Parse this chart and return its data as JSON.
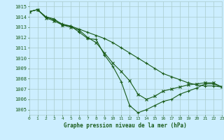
{
  "title": "Graphe pression niveau de la mer (hPa)",
  "bg_color": "#cceeff",
  "grid_color": "#aacccc",
  "line_color": "#1a5c1a",
  "xlim": [
    0,
    23
  ],
  "ylim": [
    1004.5,
    1015.5
  ],
  "yticks": [
    1005,
    1006,
    1007,
    1008,
    1009,
    1010,
    1011,
    1012,
    1013,
    1014,
    1015
  ],
  "xticks": [
    0,
    1,
    2,
    3,
    4,
    5,
    6,
    7,
    8,
    9,
    10,
    11,
    12,
    13,
    14,
    15,
    16,
    17,
    18,
    19,
    20,
    21,
    22,
    23
  ],
  "series": [
    {
      "x": [
        0,
        1,
        2,
        3,
        4,
        5,
        6,
        7,
        8,
        9,
        10,
        11,
        12,
        13,
        14,
        15,
        16,
        17,
        18,
        19,
        20,
        21,
        22,
        23
      ],
      "y": [
        1014.5,
        1014.7,
        1014.0,
        1013.8,
        1013.2,
        1013.1,
        1012.5,
        1011.9,
        1011.8,
        1010.3,
        1009.2,
        1007.7,
        1005.4,
        1004.7,
        1005.0,
        1005.4,
        1005.8,
        1006.0,
        1006.5,
        1006.8,
        1007.1,
        1007.5,
        1007.5,
        1007.2
      ]
    },
    {
      "x": [
        0,
        1,
        2,
        3,
        4,
        5,
        6,
        7,
        8,
        9,
        10,
        11,
        12,
        13,
        14,
        15,
        16,
        17,
        18,
        19,
        20,
        21,
        22,
        23
      ],
      "y": [
        1014.5,
        1014.7,
        1014.0,
        1013.7,
        1013.3,
        1013.1,
        1012.8,
        1012.5,
        1012.2,
        1011.9,
        1011.5,
        1011.0,
        1010.5,
        1010.0,
        1009.5,
        1009.0,
        1008.5,
        1008.2,
        1007.9,
        1007.6,
        1007.4,
        1007.3,
        1007.3,
        1007.2
      ]
    },
    {
      "x": [
        0,
        1,
        2,
        3,
        4,
        5,
        6,
        7,
        8,
        9,
        10,
        11,
        12,
        13,
        14,
        15,
        16,
        17,
        18,
        19,
        20,
        21,
        22,
        23
      ],
      "y": [
        1014.5,
        1014.7,
        1013.9,
        1013.6,
        1013.2,
        1013.0,
        1012.7,
        1012.0,
        1011.5,
        1010.5,
        1009.5,
        1008.7,
        1007.8,
        1006.5,
        1006.0,
        1006.3,
        1006.8,
        1007.0,
        1007.2,
        1007.4,
        1007.5,
        1007.6,
        1007.6,
        1007.2
      ]
    }
  ]
}
